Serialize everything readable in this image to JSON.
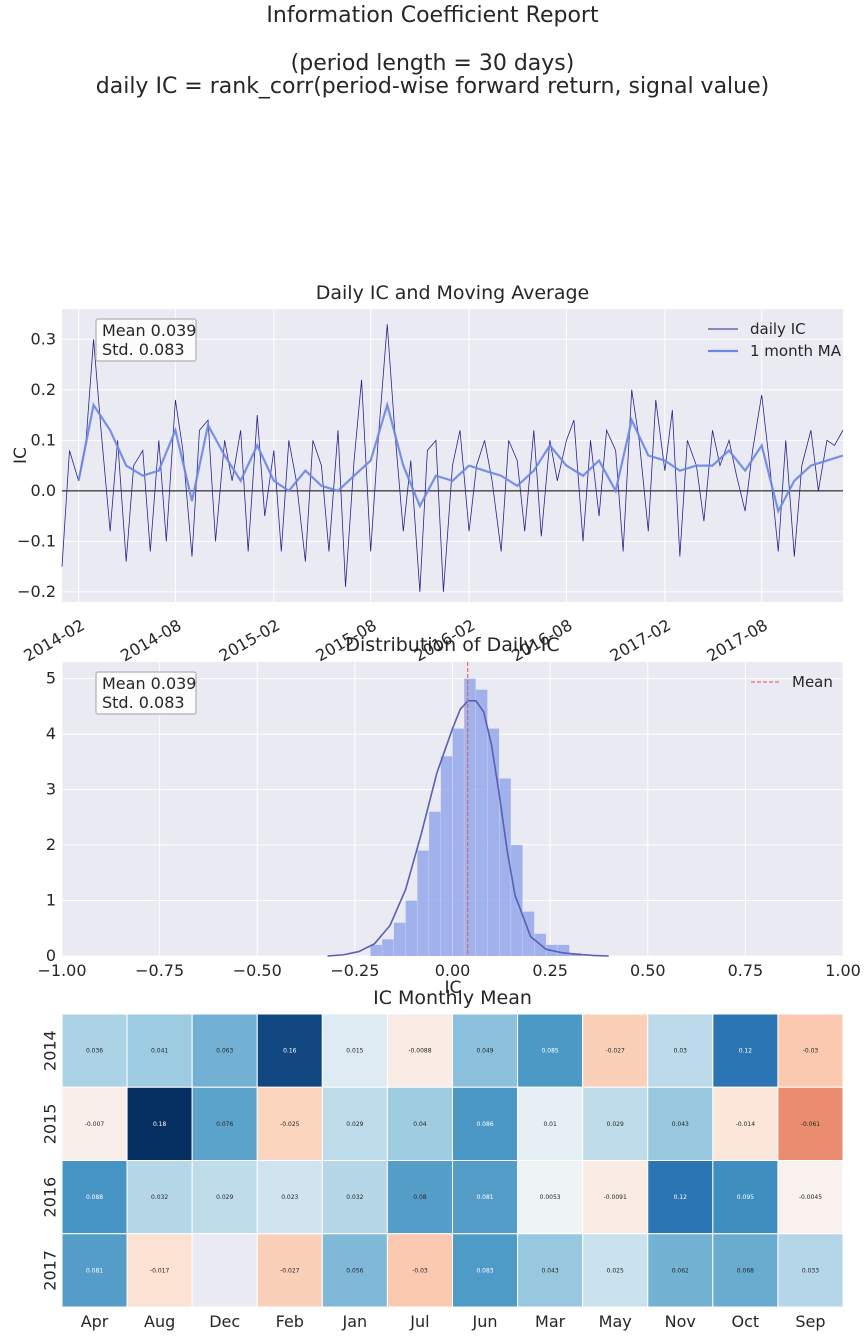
{
  "suptitle": {
    "line1": "Information Coefficient Report",
    "line2": "(period length = 30 days)",
    "line3": "daily IC = rank_corr(period-wise forward return, signal value)"
  },
  "colors": {
    "axes_bg": "#EAEAF2",
    "grid": "#FFFFFF",
    "daily_ic": "#29238D",
    "ma": "#6A86E6",
    "hist": "#8FA3EA",
    "kde": "#5A5FB5",
    "mean_line": "#E5534B"
  },
  "chart_data": [
    {
      "type": "line",
      "title": "Daily IC and Moving Average",
      "ylabel": "IC",
      "xlabel": "",
      "x_range": [
        "2014-01-01",
        "2017-12-31"
      ],
      "ylim": [
        -0.22,
        0.36
      ],
      "yticks": [
        -0.2,
        -0.1,
        0.0,
        0.1,
        0.2,
        0.3
      ],
      "yticklabels": [
        "−0.2",
        "−0.1",
        "0.0",
        "0.1",
        "0.2",
        "0.3"
      ],
      "xticklabels": [
        "2014-02",
        "2014-08",
        "2015-02",
        "2015-08",
        "2016-02",
        "2016-08",
        "2017-02",
        "2017-08"
      ],
      "xtick_dates": [
        "2014-02-01",
        "2014-08-01",
        "2015-02-01",
        "2015-08-01",
        "2016-02-01",
        "2016-08-01",
        "2017-02-01",
        "2017-08-01"
      ],
      "stats": {
        "mean_label": "Mean 0.039",
        "std_label": " Std. 0.083"
      },
      "legend": [
        "daily IC",
        "1 month MA"
      ],
      "grid": true,
      "legend_position": "top-right",
      "zero_line": true,
      "series": [
        {
          "name": "daily IC",
          "x": [
            "2014-01-01",
            "2014-01-15",
            "2014-02-01",
            "2014-02-15",
            "2014-03-01",
            "2014-03-15",
            "2014-04-01",
            "2014-04-15",
            "2014-05-01",
            "2014-05-15",
            "2014-06-01",
            "2014-06-15",
            "2014-07-01",
            "2014-07-15",
            "2014-08-01",
            "2014-08-15",
            "2014-09-01",
            "2014-09-15",
            "2014-10-01",
            "2014-10-15",
            "2014-11-01",
            "2014-11-15",
            "2014-12-01",
            "2014-12-15",
            "2015-01-01",
            "2015-01-15",
            "2015-02-01",
            "2015-02-15",
            "2015-03-01",
            "2015-03-15",
            "2015-04-01",
            "2015-04-15",
            "2015-05-01",
            "2015-05-15",
            "2015-06-01",
            "2015-06-15",
            "2015-07-01",
            "2015-07-15",
            "2015-08-01",
            "2015-08-15",
            "2015-09-01",
            "2015-09-15",
            "2015-10-01",
            "2015-10-15",
            "2015-11-01",
            "2015-11-15",
            "2015-12-01",
            "2015-12-15",
            "2016-01-01",
            "2016-01-15",
            "2016-02-01",
            "2016-02-15",
            "2016-03-01",
            "2016-03-15",
            "2016-04-01",
            "2016-04-15",
            "2016-05-01",
            "2016-05-15",
            "2016-06-01",
            "2016-06-15",
            "2016-07-01",
            "2016-07-15",
            "2016-08-01",
            "2016-08-15",
            "2016-09-01",
            "2016-09-15",
            "2016-10-01",
            "2016-10-15",
            "2016-11-01",
            "2016-11-15",
            "2016-12-01",
            "2016-12-15",
            "2017-01-01",
            "2017-01-15",
            "2017-02-01",
            "2017-02-15",
            "2017-03-01",
            "2017-03-15",
            "2017-04-01",
            "2017-04-15",
            "2017-05-01",
            "2017-05-15",
            "2017-06-01",
            "2017-06-15",
            "2017-07-01",
            "2017-07-15",
            "2017-08-01",
            "2017-08-15",
            "2017-09-01",
            "2017-09-15",
            "2017-10-01",
            "2017-10-15",
            "2017-11-01",
            "2017-11-15",
            "2017-12-01",
            "2017-12-15",
            "2017-12-31"
          ],
          "values": [
            -0.15,
            0.08,
            0.02,
            0.1,
            0.3,
            0.12,
            -0.08,
            0.1,
            -0.14,
            0.05,
            0.08,
            -0.12,
            0.1,
            -0.1,
            0.18,
            0.08,
            -0.13,
            0.12,
            0.14,
            -0.1,
            0.1,
            0.02,
            0.12,
            -0.12,
            0.15,
            -0.05,
            0.08,
            -0.12,
            0.1,
            0.02,
            -0.14,
            0.1,
            0.05,
            -0.12,
            0.12,
            -0.19,
            0.06,
            0.22,
            -0.12,
            0.1,
            0.33,
            0.12,
            -0.08,
            0.06,
            -0.2,
            0.08,
            0.1,
            -0.2,
            0.05,
            0.12,
            -0.08,
            0.05,
            0.1,
            0.02,
            -0.12,
            0.1,
            0.06,
            -0.08,
            0.12,
            -0.09,
            0.1,
            0.02,
            0.1,
            0.14,
            -0.1,
            0.1,
            -0.05,
            0.12,
            0.08,
            -0.12,
            0.2,
            0.1,
            -0.08,
            0.18,
            0.04,
            0.16,
            -0.13,
            0.1,
            0.05,
            -0.06,
            0.12,
            0.05,
            0.1,
            0.03,
            -0.04,
            0.08,
            0.19,
            0.06,
            -0.12,
            0.1,
            -0.13,
            0.05,
            0.12,
            0.0,
            0.1,
            0.09,
            0.12
          ]
        },
        {
          "name": "1 month MA",
          "x": [
            "2014-02-01",
            "2014-03-01",
            "2014-04-01",
            "2014-05-01",
            "2014-06-01",
            "2014-07-01",
            "2014-08-01",
            "2014-09-01",
            "2014-10-01",
            "2014-11-01",
            "2014-12-01",
            "2015-01-01",
            "2015-02-01",
            "2015-03-01",
            "2015-04-01",
            "2015-05-01",
            "2015-06-01",
            "2015-07-01",
            "2015-08-01",
            "2015-09-01",
            "2015-10-01",
            "2015-11-01",
            "2015-12-01",
            "2016-01-01",
            "2016-02-01",
            "2016-03-01",
            "2016-04-01",
            "2016-05-01",
            "2016-06-01",
            "2016-07-01",
            "2016-08-01",
            "2016-09-01",
            "2016-10-01",
            "2016-11-01",
            "2016-12-01",
            "2017-01-01",
            "2017-02-01",
            "2017-03-01",
            "2017-04-01",
            "2017-05-01",
            "2017-06-01",
            "2017-07-01",
            "2017-08-01",
            "2017-09-01",
            "2017-10-01",
            "2017-11-01",
            "2017-12-01",
            "2017-12-31"
          ],
          "values": [
            0.02,
            0.17,
            0.12,
            0.05,
            0.03,
            0.04,
            0.12,
            -0.02,
            0.13,
            0.07,
            0.02,
            0.09,
            0.02,
            0.0,
            0.04,
            0.01,
            0.0,
            0.03,
            0.06,
            0.17,
            0.05,
            -0.03,
            0.03,
            0.02,
            0.05,
            0.04,
            0.03,
            0.01,
            0.04,
            0.09,
            0.05,
            0.03,
            0.06,
            0.0,
            0.14,
            0.07,
            0.06,
            0.04,
            0.05,
            0.05,
            0.08,
            0.04,
            0.09,
            -0.04,
            0.02,
            0.05,
            0.06,
            0.07
          ]
        }
      ]
    },
    {
      "type": "area",
      "title": "Distribution of Daily IC",
      "xlabel": "IC",
      "ylabel": "",
      "xlim": [
        -1.0,
        1.0
      ],
      "ylim": [
        0,
        5.3
      ],
      "xticks": [
        -1.0,
        -0.75,
        -0.5,
        -0.25,
        0.0,
        0.25,
        0.5,
        0.75,
        1.0
      ],
      "xticklabels": [
        "−1.00",
        "−0.75",
        "−0.50",
        "−0.25",
        "0.00",
        "0.25",
        "0.50",
        "0.75",
        "1.00"
      ],
      "yticks": [
        0,
        1,
        2,
        3,
        4,
        5
      ],
      "yticklabels": [
        "0",
        "1",
        "2",
        "3",
        "4",
        "5"
      ],
      "stats": {
        "mean_label": "Mean 0.039",
        "std_label": " Std. 0.083"
      },
      "legend": [
        "Mean"
      ],
      "mean": 0.039,
      "grid": true,
      "legend_position": "top-right",
      "histogram": {
        "bin_edges": [
          -0.21,
          -0.18,
          -0.15,
          -0.12,
          -0.09,
          -0.06,
          -0.03,
          0.0,
          0.03,
          0.06,
          0.09,
          0.12,
          0.15,
          0.18,
          0.21,
          0.24,
          0.27,
          0.3,
          0.33
        ],
        "density": [
          0.2,
          0.3,
          0.6,
          1.0,
          1.9,
          2.6,
          3.6,
          4.1,
          5.0,
          4.8,
          4.1,
          3.2,
          2.0,
          0.8,
          0.4,
          0.2,
          0.2,
          0.05
        ]
      },
      "kde": {
        "x": [
          -0.32,
          -0.28,
          -0.24,
          -0.2,
          -0.16,
          -0.12,
          -0.08,
          -0.04,
          0.0,
          0.02,
          0.04,
          0.06,
          0.08,
          0.1,
          0.12,
          0.14,
          0.16,
          0.2,
          0.24,
          0.28,
          0.32,
          0.36,
          0.4
        ],
        "y": [
          0.0,
          0.02,
          0.08,
          0.22,
          0.55,
          1.2,
          2.2,
          3.3,
          4.1,
          4.45,
          4.6,
          4.6,
          4.4,
          3.8,
          2.9,
          1.9,
          1.1,
          0.35,
          0.12,
          0.06,
          0.03,
          0.01,
          0.0
        ]
      }
    },
    {
      "type": "heatmap",
      "title": "IC Monthly Mean",
      "xlabel": "",
      "ylabel": "",
      "columns": [
        "Apr",
        "Aug",
        "Dec",
        "Feb",
        "Jan",
        "Jul",
        "Jun",
        "Mar",
        "May",
        "Nov",
        "Oct",
        "Sep"
      ],
      "rows": [
        "2014",
        "2015",
        "2016",
        "2017"
      ],
      "values": [
        [
          0.036,
          0.041,
          0.063,
          0.16,
          0.015,
          -0.0088,
          0.049,
          0.085,
          -0.027,
          0.03,
          0.12,
          -0.03
        ],
        [
          -0.007,
          0.18,
          0.076,
          -0.025,
          0.029,
          0.04,
          0.086,
          0.01,
          0.029,
          0.043,
          -0.014,
          -0.061
        ],
        [
          0.088,
          0.032,
          0.029,
          0.023,
          0.032,
          0.08,
          0.081,
          0.0053,
          -0.0091,
          0.12,
          0.095,
          -0.0045
        ],
        [
          0.081,
          -0.017,
          null,
          -0.027,
          0.056,
          -0.03,
          0.083,
          0.043,
          0.025,
          0.062,
          0.068,
          0.033
        ]
      ],
      "labels": [
        [
          "0.036",
          "0.041",
          "0.063",
          "0.16",
          "0.015",
          "-0.0088",
          "0.049",
          "0.085",
          "-0.027",
          "0.03",
          "0.12",
          "-0.03"
        ],
        [
          "-0.007",
          "0.18",
          "0.076",
          "-0.025",
          "0.029",
          "0.04",
          "0.086",
          "0.01",
          "0.029",
          "0.043",
          "-0.014",
          "-0.061"
        ],
        [
          "0.088",
          "0.032",
          "0.029",
          "0.023",
          "0.032",
          "0.08",
          "0.081",
          "0.0053",
          "-0.0091",
          "0.12",
          "0.095",
          "-0.0045"
        ],
        [
          "0.081",
          "-0.017",
          "",
          "-0.027",
          "0.056",
          "-0.03",
          "0.083",
          "0.043",
          "0.025",
          "0.062",
          "0.068",
          "0.033"
        ]
      ],
      "colormap": "RdBu",
      "center": 0
    }
  ]
}
